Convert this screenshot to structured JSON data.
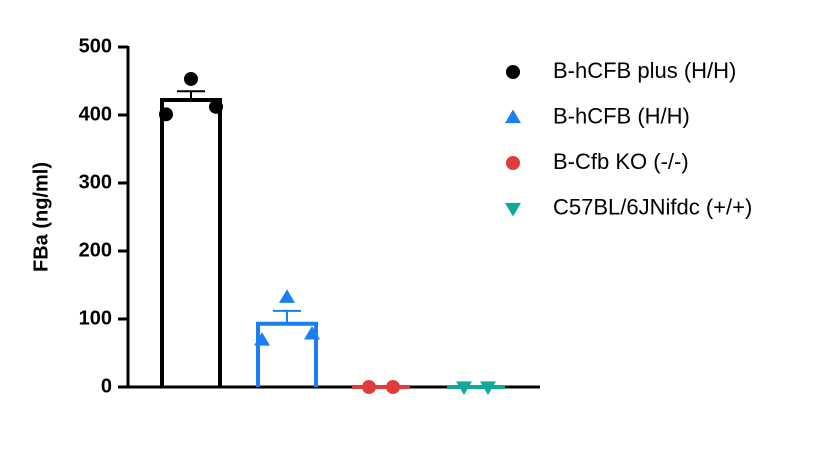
{
  "chart_data": {
    "type": "bar",
    "y_label": "FBa (ng/ml)",
    "ylim": [
      0,
      500
    ],
    "yticks": [
      0,
      100,
      200,
      300,
      400,
      500
    ],
    "series": [
      {
        "name": "B-hCFB plus (H/H)",
        "color": "#000000",
        "marker": "circle",
        "values": [
          401,
          453,
          412
        ],
        "mean": 422,
        "error": 13
      },
      {
        "name": "B-hCFB (H/H)",
        "color": "#1a7ff0",
        "marker": "triangle-up",
        "values": [
          69,
          132,
          78
        ],
        "mean": 93,
        "error": 19
      },
      {
        "name": "B-Cfb KO (-/-)",
        "color": "#e03c3c",
        "marker": "circle",
        "values": [
          0,
          0
        ],
        "mean": 0,
        "error": 0
      },
      {
        "name": "C57BL/6JNifdc (+/+)",
        "color": "#10a89a",
        "marker": "triangle-down",
        "values": [
          0,
          0
        ],
        "mean": 0,
        "error": 0
      }
    ]
  }
}
